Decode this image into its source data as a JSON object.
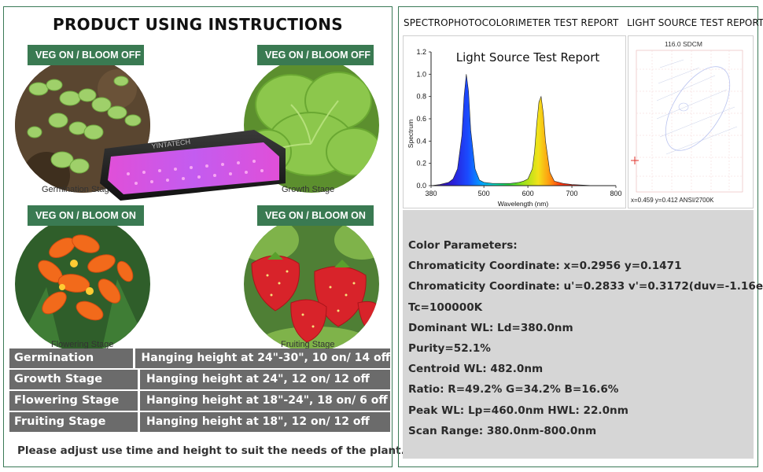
{
  "left": {
    "title": "PRODUCT USING INSTRUCTIONS",
    "stages": [
      {
        "badge": "VEG ON / BLOOM OFF",
        "caption": "Germination Stage",
        "icon": "seedling-photo"
      },
      {
        "badge": "VEG ON / BLOOM OFF",
        "caption": "Growth Stage",
        "icon": "lettuce-photo"
      },
      {
        "badge": "VEG ON / BLOOM ON",
        "caption": "Flowering Stage",
        "icon": "flower-photo"
      },
      {
        "badge": "VEG ON / BLOOM ON",
        "caption": "Fruiting Stage",
        "icon": "strawberry-photo"
      }
    ],
    "lamp_brand": "YINTATECH",
    "table": [
      {
        "stage": "Germination Stage",
        "detail": "Hanging height at 24\"-30\", 10 on/ 14 off"
      },
      {
        "stage": "Growth Stage",
        "detail": "Hanging height at 24\", 12 on/ 12 off"
      },
      {
        "stage": "Flowering Stage",
        "detail": "Hanging height at 18\"-24\", 18 on/ 6 off"
      },
      {
        "stage": "Fruiting Stage",
        "detail": "Hanging height at 18\", 12 on/ 12 off"
      }
    ],
    "notice": "Please adjust use time and height to suit the needs of the plant.",
    "colors": {
      "badge": "#3a7a52",
      "table": "#6b6b6b",
      "border": "#3b7a57"
    }
  },
  "right": {
    "spectro_title": "SPECTROPHOTOCOLORIMETER TEST REPORT",
    "light_source_title": "LIGHT SOURCE TEST REPORT",
    "cie": {
      "title": "116.0 SDCM",
      "footer": "x=0.459  y=0.412   ANSI/2700K"
    },
    "parameters": [
      "Color Parameters:",
      "Chromaticity Coordinate: x=0.2956 y=0.1471",
      "Chromaticity Coordinate: u'=0.2833 v'=0.3172(duv=-1.16e-01)",
      "Tc=100000K",
      "Dominant WL: Ld=380.0nm",
      "Purity=52.1%",
      "Centroid WL: 482.0nm",
      "Ratio: R=49.2% G=34.2% B=16.6%",
      "Peak WL: Lp=460.0nm HWL: 22.0nm",
      "Scan Range: 380.0nm-800.0nm"
    ]
  },
  "chart_data": {
    "type": "line",
    "title": "Light Source Test Report",
    "xlabel": "Wavelength (nm)",
    "ylabel": "Spectrum",
    "xlim": [
      380,
      800
    ],
    "ylim": [
      0,
      1.2
    ],
    "xticks": [
      380,
      500,
      600,
      700,
      800
    ],
    "yticks": [
      0.0,
      0.2,
      0.4,
      0.6,
      0.8,
      1.0,
      1.2
    ],
    "x": [
      380,
      400,
      420,
      430,
      440,
      450,
      455,
      460,
      465,
      470,
      480,
      490,
      500,
      520,
      540,
      560,
      580,
      590,
      600,
      610,
      615,
      620,
      625,
      630,
      635,
      640,
      650,
      660,
      680,
      700,
      750,
      800
    ],
    "y": [
      0.0,
      0.01,
      0.03,
      0.06,
      0.15,
      0.45,
      0.8,
      1.0,
      0.85,
      0.5,
      0.15,
      0.05,
      0.03,
      0.02,
      0.02,
      0.02,
      0.03,
      0.04,
      0.06,
      0.15,
      0.3,
      0.55,
      0.75,
      0.8,
      0.65,
      0.4,
      0.12,
      0.04,
      0.02,
      0.01,
      0.0,
      0.0
    ]
  }
}
